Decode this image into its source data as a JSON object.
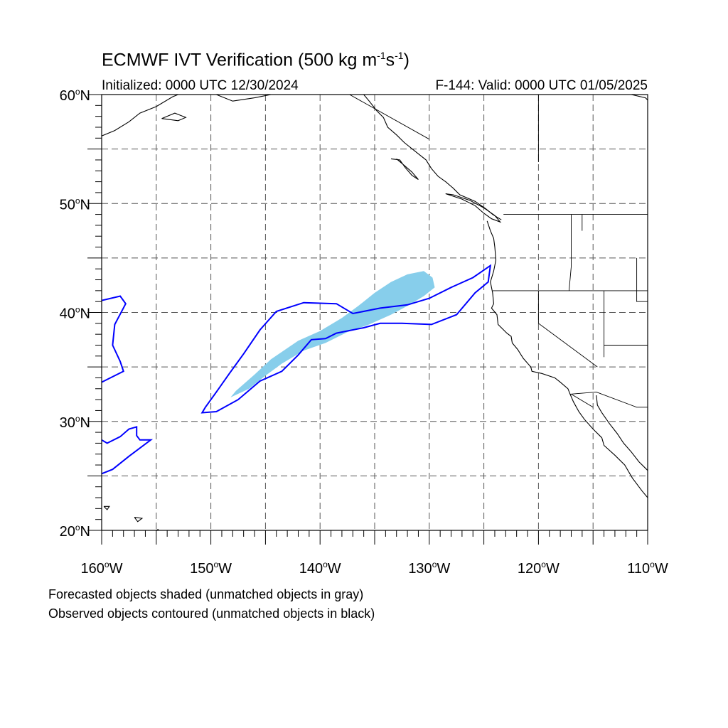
{
  "title": {
    "text": "ECMWF IVT Verification (500 kg m",
    "exp1": "-1",
    "s": "s",
    "exp2": "-1",
    "close": ")"
  },
  "subtitle": {
    "initialized": "Initialized: 0000 UTC 12/30/2024",
    "valid": "F-144: Valid: 0000 UTC 01/05/2025"
  },
  "axes": {
    "lat_labels": [
      {
        "lat": 60,
        "text": "60",
        "suffix": "N"
      },
      {
        "lat": 50,
        "text": "50",
        "suffix": "N"
      },
      {
        "lat": 40,
        "text": "40",
        "suffix": "N"
      },
      {
        "lat": 30,
        "text": "30",
        "suffix": "N"
      },
      {
        "lat": 20,
        "text": "20",
        "suffix": "N"
      }
    ],
    "lon_labels": [
      {
        "lon": -160,
        "text": "160",
        "suffix": "W"
      },
      {
        "lon": -150,
        "text": "150",
        "suffix": "W"
      },
      {
        "lon": -140,
        "text": "140",
        "suffix": "W"
      },
      {
        "lon": -130,
        "text": "130",
        "suffix": "W"
      },
      {
        "lon": -120,
        "text": "120",
        "suffix": "W"
      },
      {
        "lon": -110,
        "text": "110",
        "suffix": "W"
      }
    ],
    "lat_range": [
      20,
      60
    ],
    "lon_range": [
      -160,
      -110
    ],
    "grid_spacing_deg": 5,
    "grid": true
  },
  "legend_notes": {
    "line1": "Forecasted objects shaded (unmatched objects in gray)",
    "line2": "Observed objects contoured (unmatched objects in black)"
  },
  "colors": {
    "forecast_fill": "#87CEEB",
    "observed_contour": "#0000FF",
    "coastline": "#000000",
    "grid": "#555555"
  },
  "map_data": {
    "forecast_object": [
      [
        -148.2,
        32.2
      ],
      [
        -146.5,
        33.0
      ],
      [
        -145.0,
        34.2
      ],
      [
        -143.5,
        35.3
      ],
      [
        -141.5,
        36.5
      ],
      [
        -139.5,
        37.2
      ],
      [
        -137.5,
        38.2
      ],
      [
        -135.5,
        38.9
      ],
      [
        -133.5,
        39.8
      ],
      [
        -132.0,
        40.6
      ],
      [
        -130.5,
        41.5
      ],
      [
        -129.5,
        42.3
      ],
      [
        -129.7,
        43.2
      ],
      [
        -130.5,
        43.8
      ],
      [
        -132.0,
        43.5
      ],
      [
        -133.5,
        42.8
      ],
      [
        -135.0,
        41.8
      ],
      [
        -136.5,
        40.6
      ],
      [
        -138.0,
        39.5
      ],
      [
        -140.0,
        38.3
      ],
      [
        -142.0,
        37.4
      ],
      [
        -144.5,
        35.7
      ],
      [
        -146.0,
        34.3
      ],
      [
        -147.7,
        32.8
      ]
    ],
    "observed_object": [
      [
        -150.8,
        30.8
      ],
      [
        -149.5,
        30.9
      ],
      [
        -147.5,
        32.0
      ],
      [
        -145.5,
        33.7
      ],
      [
        -143.5,
        34.6
      ],
      [
        -142.0,
        36.1
      ],
      [
        -140.8,
        37.5
      ],
      [
        -139.5,
        37.6
      ],
      [
        -138.5,
        38.1
      ],
      [
        -136.0,
        38.6
      ],
      [
        -134.5,
        39.0
      ],
      [
        -132.5,
        39.0
      ],
      [
        -129.8,
        38.9
      ],
      [
        -127.5,
        39.8
      ],
      [
        -125.8,
        41.8
      ],
      [
        -124.6,
        42.8
      ],
      [
        -124.4,
        44.3
      ],
      [
        -126.0,
        43.2
      ],
      [
        -128.0,
        42.3
      ],
      [
        -130.0,
        41.3
      ],
      [
        -132.0,
        40.7
      ],
      [
        -134.5,
        40.4
      ],
      [
        -137.0,
        39.9
      ],
      [
        -138.5,
        40.8
      ],
      [
        -141.5,
        40.9
      ],
      [
        -144.0,
        40.1
      ],
      [
        -145.5,
        38.4
      ],
      [
        -147.0,
        36.2
      ],
      [
        -148.3,
        34.4
      ],
      [
        -149.5,
        32.7
      ],
      [
        -150.5,
        31.3
      ]
    ],
    "observed_left_upper": [
      [
        -160.0,
        41.1
      ],
      [
        -158.3,
        41.5
      ],
      [
        -157.8,
        40.8
      ],
      [
        -158.8,
        38.9
      ],
      [
        -159.0,
        37.0
      ],
      [
        -158.3,
        35.5
      ],
      [
        -158.0,
        34.6
      ],
      [
        -159.4,
        33.9
      ],
      [
        -160.0,
        33.6
      ]
    ],
    "observed_left_lower": [
      [
        -160.0,
        28.3
      ],
      [
        -159.5,
        28.0
      ],
      [
        -158.3,
        28.6
      ],
      [
        -157.5,
        29.3
      ],
      [
        -156.8,
        29.5
      ],
      [
        -156.8,
        28.7
      ],
      [
        -156.5,
        28.3
      ],
      [
        -155.5,
        28.3
      ],
      [
        -157.5,
        26.8
      ],
      [
        -159.0,
        25.6
      ],
      [
        -160.0,
        25.2
      ]
    ],
    "coastlines": [
      [
        [
          -136.0,
          60.0
        ],
        [
          -135.5,
          59.4
        ],
        [
          -134.8,
          58.5
        ],
        [
          -134.2,
          57.9
        ],
        [
          -133.8,
          57.0
        ],
        [
          -133.0,
          56.3
        ],
        [
          -132.3,
          55.6
        ],
        [
          -131.3,
          54.8
        ],
        [
          -130.3,
          54.0
        ],
        [
          -129.8,
          53.2
        ],
        [
          -129.2,
          52.5
        ],
        [
          -128.5,
          52.0
        ],
        [
          -127.8,
          51.4
        ],
        [
          -127.2,
          50.8
        ],
        [
          -125.8,
          50.2
        ],
        [
          -124.8,
          49.5
        ],
        [
          -124.2,
          49.0
        ],
        [
          -123.4,
          48.5
        ]
      ],
      [
        [
          -133.5,
          54.1
        ],
        [
          -132.7,
          54.0
        ],
        [
          -132.2,
          53.3
        ],
        [
          -131.6,
          52.6
        ],
        [
          -131.0,
          52.2
        ],
        [
          -131.6,
          52.9
        ],
        [
          -132.3,
          53.5
        ],
        [
          -133.0,
          54.1
        ]
      ],
      [
        [
          -128.5,
          50.9
        ],
        [
          -127.0,
          50.4
        ],
        [
          -125.8,
          49.8
        ],
        [
          -125.0,
          49.1
        ],
        [
          -124.3,
          48.6
        ],
        [
          -123.5,
          48.3
        ],
        [
          -124.0,
          48.9
        ],
        [
          -125.0,
          49.6
        ],
        [
          -126.3,
          50.3
        ],
        [
          -127.8,
          50.8
        ],
        [
          -128.5,
          50.9
        ]
      ],
      [
        [
          -124.7,
          48.4
        ],
        [
          -124.4,
          47.5
        ],
        [
          -124.1,
          46.8
        ],
        [
          -124.0,
          46.0
        ],
        [
          -123.9,
          44.8
        ],
        [
          -124.1,
          43.8
        ],
        [
          -124.4,
          42.8
        ],
        [
          -124.2,
          41.8
        ],
        [
          -124.1,
          40.8
        ],
        [
          -124.3,
          40.4
        ],
        [
          -123.8,
          39.8
        ],
        [
          -123.7,
          38.9
        ],
        [
          -122.9,
          38.1
        ],
        [
          -122.5,
          37.8
        ],
        [
          -122.4,
          37.2
        ],
        [
          -121.9,
          36.6
        ],
        [
          -121.4,
          35.8
        ],
        [
          -120.7,
          35.0
        ],
        [
          -120.6,
          34.6
        ],
        [
          -119.7,
          34.4
        ],
        [
          -118.5,
          34.0
        ],
        [
          -118.0,
          33.6
        ],
        [
          -117.3,
          33.0
        ],
        [
          -117.1,
          32.5
        ],
        [
          -116.8,
          31.8
        ],
        [
          -116.3,
          30.9
        ],
        [
          -115.8,
          30.2
        ],
        [
          -115.0,
          29.3
        ],
        [
          -114.2,
          28.5
        ],
        [
          -114.0,
          27.8
        ],
        [
          -113.0,
          26.9
        ],
        [
          -112.1,
          26.0
        ],
        [
          -111.4,
          24.8
        ],
        [
          -110.5,
          23.6
        ],
        [
          -110.0,
          23.0
        ]
      ],
      [
        [
          -114.7,
          32.4
        ],
        [
          -114.6,
          31.5
        ],
        [
          -114.2,
          30.8
        ],
        [
          -113.5,
          29.8
        ],
        [
          -112.8,
          28.9
        ],
        [
          -112.2,
          28.0
        ],
        [
          -111.5,
          27.2
        ],
        [
          -110.8,
          26.3
        ],
        [
          -110.0,
          25.5
        ]
      ],
      [
        [
          -154.8,
          20.1
        ],
        [
          -155.5,
          19.8
        ],
        [
          -155.2,
          19.5
        ],
        [
          -154.8,
          20.1
        ]
      ],
      [
        [
          -157.0,
          21.2
        ],
        [
          -156.3,
          21.1
        ],
        [
          -156.7,
          20.8
        ],
        [
          -157.0,
          21.2
        ]
      ],
      [
        [
          -159.8,
          22.2
        ],
        [
          -159.3,
          22.2
        ],
        [
          -159.5,
          21.9
        ],
        [
          -159.8,
          22.2
        ]
      ],
      [
        [
          -160.0,
          56.2
        ],
        [
          -158.8,
          56.7
        ],
        [
          -157.5,
          57.5
        ],
        [
          -156.5,
          58.3
        ],
        [
          -155.0,
          58.9
        ],
        [
          -153.5,
          59.8
        ],
        [
          -153.0,
          60.0
        ]
      ],
      [
        [
          -154.5,
          57.8
        ],
        [
          -153.0,
          57.6
        ],
        [
          -152.3,
          57.9
        ],
        [
          -153.3,
          58.3
        ],
        [
          -154.5,
          57.8
        ]
      ],
      [
        [
          -149.5,
          60.0
        ],
        [
          -148.0,
          59.4
        ],
        [
          -146.0,
          59.7
        ],
        [
          -144.5,
          60.0
        ]
      ],
      [
        [
          -111.5,
          60.0
        ],
        [
          -110.2,
          59.7
        ],
        [
          -110.0,
          59.5
        ]
      ]
    ],
    "borders": [
      [
        [
          -123.2,
          49.0
        ],
        [
          -110.0,
          49.0
        ]
      ],
      [
        [
          -124.2,
          42.0
        ],
        [
          -110.0,
          42.0
        ]
      ],
      [
        [
          -120.0,
          42.0
        ],
        [
          -120.0,
          39.0
        ],
        [
          -114.6,
          35.0
        ]
      ],
      [
        [
          -117.0,
          49.0
        ],
        [
          -117.0,
          44.2
        ],
        [
          -117.2,
          42.0
        ]
      ],
      [
        [
          -116.0,
          49.0
        ],
        [
          -116.0,
          47.5
        ]
      ],
      [
        [
          -114.0,
          42.0
        ],
        [
          -114.0,
          35.9
        ]
      ],
      [
        [
          -114.0,
          37.0
        ],
        [
          -110.0,
          37.0
        ]
      ],
      [
        [
          -111.0,
          45.0
        ],
        [
          -111.0,
          41.0
        ],
        [
          -110.0,
          41.0
        ]
      ],
      [
        [
          -117.1,
          32.5
        ],
        [
          -114.7,
          32.7
        ],
        [
          -111.0,
          31.3
        ],
        [
          -110.0,
          31.3
        ]
      ],
      [
        [
          -117.0,
          32.5
        ],
        [
          -115.0,
          31.3
        ]
      ],
      [
        [
          -137.3,
          60.0
        ],
        [
          -130.0,
          55.9
        ]
      ],
      [
        [
          -120.0,
          60.0
        ],
        [
          -120.0,
          53.8
        ]
      ]
    ]
  }
}
